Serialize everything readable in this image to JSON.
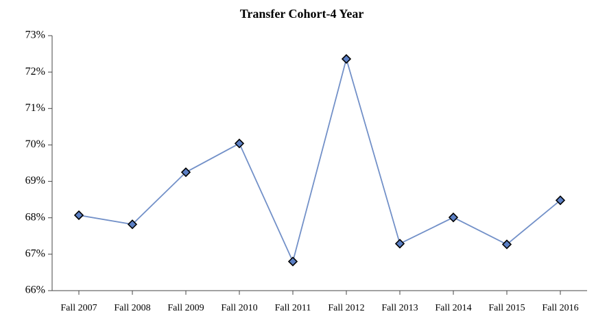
{
  "chart_data": {
    "type": "line",
    "title": "Transfer Cohort-4 Year",
    "categories": [
      "Fall 2007",
      "Fall 2008",
      "Fall 2009",
      "Fall 2010",
      "Fall 2011",
      "Fall 2012",
      "Fall 2013",
      "Fall 2014",
      "Fall 2015",
      "Fall 2016"
    ],
    "values": [
      68.07,
      67.82,
      69.25,
      70.04,
      66.8,
      72.36,
      67.29,
      68.01,
      67.27,
      68.48
    ],
    "color": "#7290c8",
    "marker_color": "#5b7fc4",
    "ylim": [
      66,
      73
    ],
    "yticks": [
      {
        "value": 66,
        "label": "66%"
      },
      {
        "value": 67,
        "label": "67%"
      },
      {
        "value": 68,
        "label": "68%"
      },
      {
        "value": 69,
        "label": "69%"
      },
      {
        "value": 70,
        "label": "70%"
      },
      {
        "value": 71,
        "label": "71%"
      },
      {
        "value": 72,
        "label": "72%"
      },
      {
        "value": 73,
        "label": "73%"
      }
    ],
    "grid": false
  }
}
